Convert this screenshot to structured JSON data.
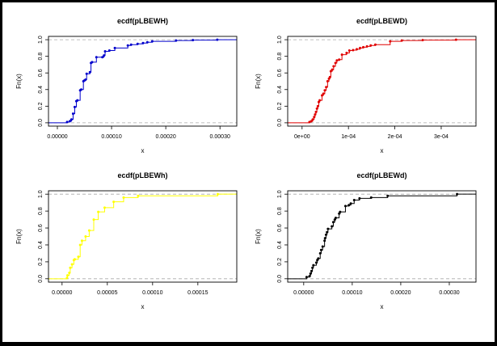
{
  "chart_data": [
    {
      "type": "line",
      "subtype": "ecdf-step",
      "title": "ecdf(pLBEWH)",
      "xlabel": "x",
      "ylabel": "Fn(x)",
      "color": "#0000cc",
      "xlim": [
        -1.64e-05,
        0.000331
      ],
      "ylim": [
        -0.04,
        1.04
      ],
      "xticks": [
        0,
        0.0001,
        0.0002,
        0.0003
      ],
      "xtick_labels": [
        "0.00000",
        "0.00010",
        "0.00020",
        "0.00030"
      ],
      "yticks": [
        0,
        0.2,
        0.4,
        0.6,
        0.8,
        1
      ],
      "ytick_labels": [
        "0.0",
        "0.2",
        "0.4",
        "0.6",
        "0.8",
        "1.0"
      ],
      "points": [
        [
          1.8e-05,
          0.01
        ],
        [
          2.3e-05,
          0.02
        ],
        [
          2.6e-05,
          0.04
        ],
        [
          2.9e-05,
          0.11
        ],
        [
          3.2e-05,
          0.19
        ],
        [
          3.5e-05,
          0.26
        ],
        [
          3.7e-05,
          0.27
        ],
        [
          4.2e-05,
          0.39
        ],
        [
          4.4e-05,
          0.4
        ],
        [
          4.8e-05,
          0.5
        ],
        [
          5e-05,
          0.51
        ],
        [
          5.2e-05,
          0.52
        ],
        [
          5.4e-05,
          0.59
        ],
        [
          6e-05,
          0.61
        ],
        [
          6.2e-05,
          0.72
        ],
        [
          6.4e-05,
          0.73
        ],
        [
          7.2e-05,
          0.79
        ],
        [
          8.3e-05,
          0.79
        ],
        [
          8.6e-05,
          0.81
        ],
        [
          8.8e-05,
          0.86
        ],
        [
          9.6e-05,
          0.87
        ],
        [
          0.000106,
          0.9
        ],
        [
          0.00013,
          0.93
        ],
        [
          0.000136,
          0.94
        ],
        [
          0.000148,
          0.95
        ],
        [
          0.000158,
          0.96
        ],
        [
          0.000166,
          0.97
        ],
        [
          0.000175,
          0.98
        ],
        [
          0.000219,
          0.99
        ],
        [
          0.00025,
          0.995
        ],
        [
          0.000295,
          1.0
        ]
      ]
    },
    {
      "type": "line",
      "subtype": "ecdf-step",
      "title": "ecdf(pLBEWD)",
      "xlabel": "x",
      "ylabel": "Fn(x)",
      "color": "#e00000",
      "xlim": [
        -3.1e-05,
        0.000375
      ],
      "ylim": [
        -0.04,
        1.04
      ],
      "xticks": [
        0,
        0.0001,
        0.0002,
        0.0003
      ],
      "xtick_labels": [
        "0e+00",
        "1e-04",
        "2e-04",
        "3e-04"
      ],
      "yticks": [
        0,
        0.2,
        0.4,
        0.6,
        0.8,
        1
      ],
      "ytick_labels": [
        "0.0",
        "0.2",
        "0.4",
        "0.6",
        "0.8",
        "1.0"
      ],
      "points": [
        [
          1.6e-05,
          0.01
        ],
        [
          2e-05,
          0.02
        ],
        [
          2.3e-05,
          0.04
        ],
        [
          2.6e-05,
          0.07
        ],
        [
          2.8e-05,
          0.1
        ],
        [
          3e-05,
          0.13
        ],
        [
          3.2e-05,
          0.17
        ],
        [
          3.4e-05,
          0.2
        ],
        [
          3.6e-05,
          0.25
        ],
        [
          3.8e-05,
          0.27
        ],
        [
          4.3e-05,
          0.33
        ],
        [
          4.6e-05,
          0.35
        ],
        [
          4.9e-05,
          0.39
        ],
        [
          5.2e-05,
          0.43
        ],
        [
          5.5e-05,
          0.5
        ],
        [
          5.8e-05,
          0.53
        ],
        [
          6e-05,
          0.55
        ],
        [
          6.2e-05,
          0.62
        ],
        [
          6.5e-05,
          0.64
        ],
        [
          6.8e-05,
          0.68
        ],
        [
          7.2e-05,
          0.72
        ],
        [
          7.5e-05,
          0.75
        ],
        [
          8e-05,
          0.76
        ],
        [
          8.6e-05,
          0.82
        ],
        [
          9.6e-05,
          0.84
        ],
        [
          0.000102,
          0.87
        ],
        [
          0.00011,
          0.875
        ],
        [
          0.000118,
          0.885
        ],
        [
          0.000125,
          0.9
        ],
        [
          0.000132,
          0.91
        ],
        [
          0.00014,
          0.92
        ],
        [
          0.000148,
          0.93
        ],
        [
          0.000158,
          0.94
        ],
        [
          0.00019,
          0.98
        ],
        [
          0.000215,
          0.99
        ],
        [
          0.00026,
          0.995
        ],
        [
          0.000332,
          1.0
        ]
      ]
    },
    {
      "type": "line",
      "subtype": "ecdf-step",
      "title": "ecdf(pLBEWh)",
      "xlabel": "x",
      "ylabel": "Fn(x)",
      "color": "#ffff00",
      "xlim": [
        -1.5e-05,
        0.000193
      ],
      "ylim": [
        -0.04,
        1.04
      ],
      "xticks": [
        0,
        5e-05,
        0.0001,
        0.00015
      ],
      "xtick_labels": [
        "0.00000",
        "0.00005",
        "0.00010",
        "0.00015"
      ],
      "yticks": [
        0,
        0.2,
        0.4,
        0.6,
        0.8,
        1
      ],
      "ytick_labels": [
        "0.0",
        "0.2",
        "0.4",
        "0.6",
        "0.8",
        "1.0"
      ],
      "points": [
        [
          5.5e-06,
          0.01
        ],
        [
          6e-06,
          0.04
        ],
        [
          8e-06,
          0.07
        ],
        [
          9e-06,
          0.13
        ],
        [
          1.1e-05,
          0.17
        ],
        [
          1.3e-05,
          0.22
        ],
        [
          1.4e-05,
          0.23
        ],
        [
          1.8e-05,
          0.26
        ],
        [
          2e-05,
          0.4
        ],
        [
          2.2e-05,
          0.45
        ],
        [
          2.6e-05,
          0.5
        ],
        [
          3e-05,
          0.57
        ],
        [
          3.5e-05,
          0.7
        ],
        [
          4e-05,
          0.79
        ],
        [
          4.7e-05,
          0.84
        ],
        [
          5.7e-05,
          0.91
        ],
        [
          6.8e-05,
          0.96
        ],
        [
          8.4e-05,
          0.98
        ],
        [
          0.000172,
          1.0
        ]
      ]
    },
    {
      "type": "line",
      "subtype": "ecdf-step",
      "title": "ecdf(pLBEWd)",
      "xlabel": "x",
      "ylabel": "Fn(x)",
      "color": "#000000",
      "xlim": [
        -3.3e-05,
        0.000355
      ],
      "ylim": [
        -0.04,
        1.04
      ],
      "xticks": [
        0,
        0.0001,
        0.0002,
        0.0003
      ],
      "xtick_labels": [
        "0.00000",
        "0.00010",
        "0.00020",
        "0.00030"
      ],
      "yticks": [
        0,
        0.2,
        0.4,
        0.6,
        0.8,
        1
      ],
      "ytick_labels": [
        "0.0",
        "0.2",
        "0.4",
        "0.6",
        "0.8",
        "1.0"
      ],
      "points": [
        [
          6e-06,
          0.02
        ],
        [
          1.2e-05,
          0.03
        ],
        [
          1.4e-05,
          0.06
        ],
        [
          1.6e-05,
          0.09
        ],
        [
          1.8e-05,
          0.13
        ],
        [
          2e-05,
          0.16
        ],
        [
          2.6e-05,
          0.19
        ],
        [
          2.8e-05,
          0.22
        ],
        [
          3e-05,
          0.24
        ],
        [
          3.4e-05,
          0.3
        ],
        [
          3.6e-05,
          0.34
        ],
        [
          3.9e-05,
          0.38
        ],
        [
          4.3e-05,
          0.45
        ],
        [
          4.4e-05,
          0.48
        ],
        [
          4.6e-05,
          0.52
        ],
        [
          4.8e-05,
          0.55
        ],
        [
          5e-05,
          0.59
        ],
        [
          5.8e-05,
          0.62
        ],
        [
          6.1e-05,
          0.67
        ],
        [
          6.4e-05,
          0.7
        ],
        [
          6.6e-05,
          0.72
        ],
        [
          7.3e-05,
          0.77
        ],
        [
          7.5e-05,
          0.79
        ],
        [
          8.6e-05,
          0.86
        ],
        [
          9.3e-05,
          0.87
        ],
        [
          9.7e-05,
          0.89
        ],
        [
          0.000104,
          0.93
        ],
        [
          0.000115,
          0.95
        ],
        [
          0.000139,
          0.96
        ],
        [
          0.000173,
          0.98
        ],
        [
          0.000316,
          1.0
        ]
      ]
    }
  ]
}
